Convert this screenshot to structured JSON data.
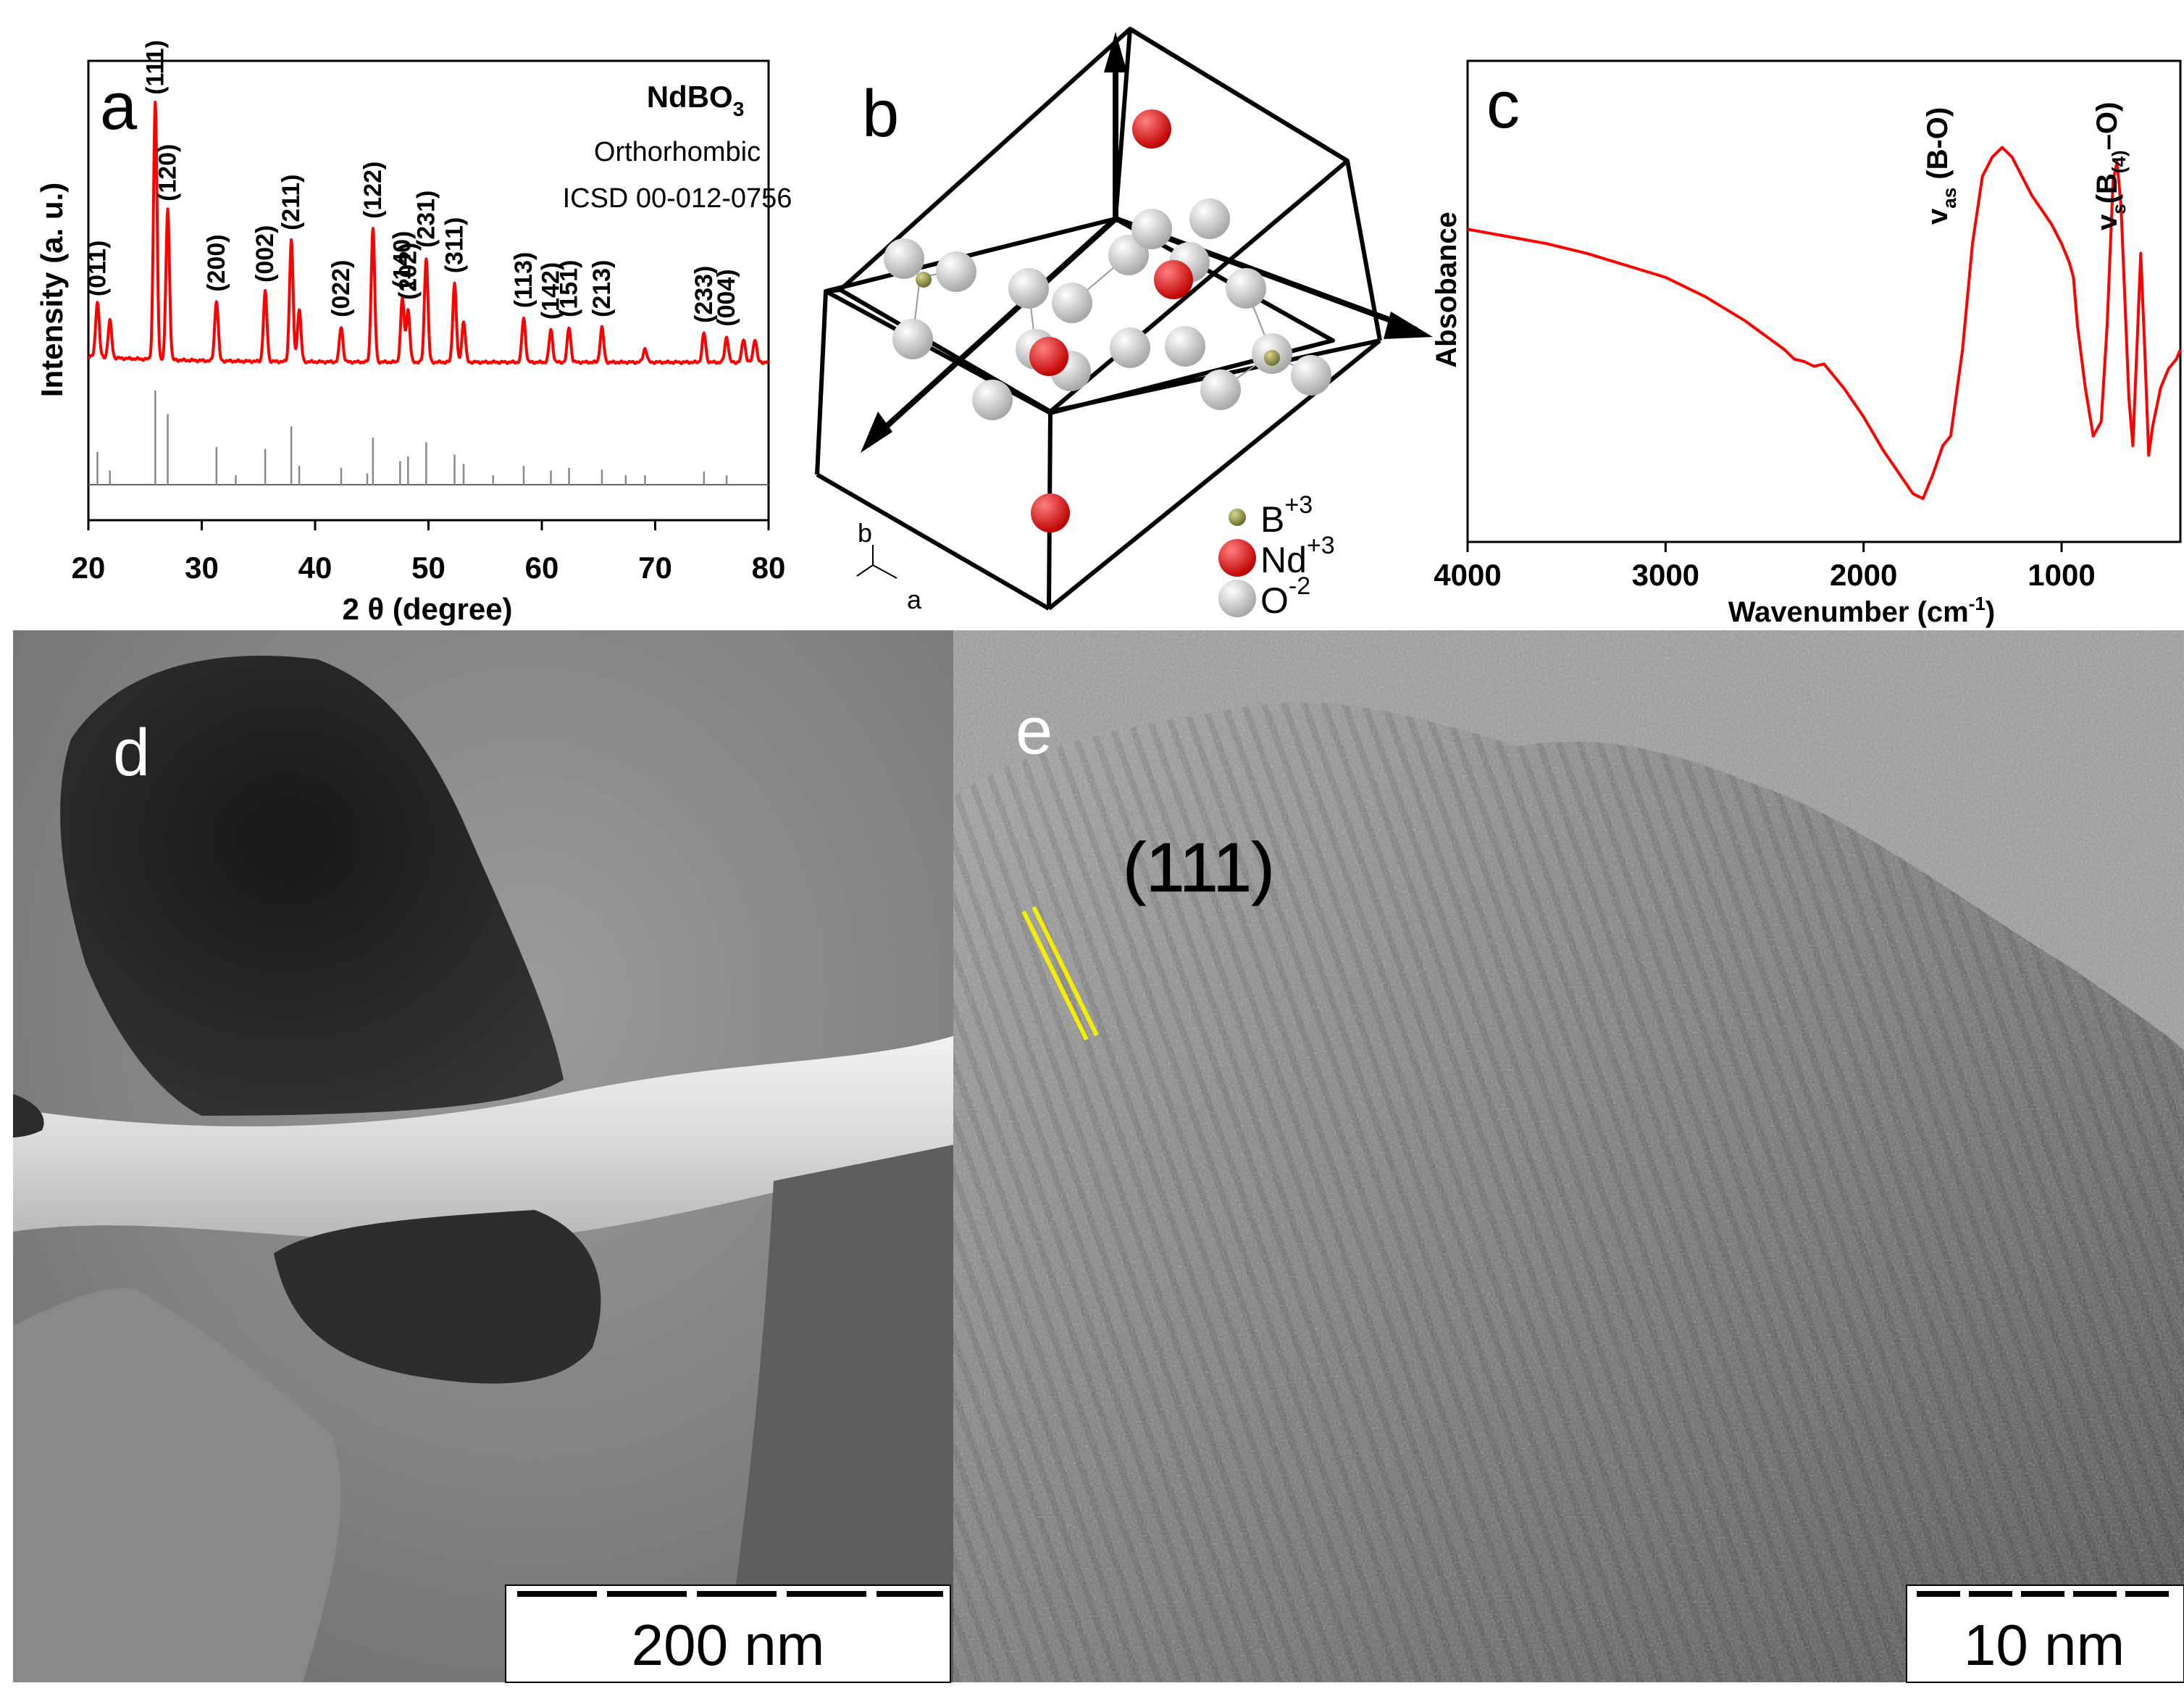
{
  "panel_a": {
    "letter": "a",
    "compound": "NdBO",
    "compound_sub": "3",
    "phase": "Orthorhombic",
    "reference": "ICSD 00-012-0756",
    "ylabel": "Intensity (a. u.)",
    "xlabel": "2 θ (degree)",
    "line_color": "#ff0000"
  },
  "panel_b": {
    "letter": "b",
    "axis_b": "b",
    "axis_a": "a",
    "legend": [
      {
        "base": "B",
        "charge": "+3",
        "color": "#9a9a52"
      },
      {
        "base": "Nd",
        "charge": "+3",
        "color": "#ee1111"
      },
      {
        "base": "O",
        "charge": "-2",
        "color": "#d8d8d8"
      }
    ]
  },
  "panel_c": {
    "letter": "c",
    "ylabel": "Absobance",
    "xlabel": "Wavenumber (cm",
    "xlabel_sup": "-1",
    "xlabel_end": ")",
    "band1": "v",
    "band1_sub": "as",
    "band1_rest": " (B-O)",
    "band2": "v",
    "band2_sub": "s",
    "band2_mid": "(B",
    "band2_sub2": "(4)",
    "band2_rest": "–O)",
    "line_color": "#ff0000"
  },
  "panel_d": {
    "letter": "d",
    "scalebar": "200 nm"
  },
  "panel_e": {
    "letter": "e",
    "plane": "(111)",
    "scalebar": "10 nm",
    "fringe_color": "#f0f000"
  },
  "chart_data": [
    {
      "type": "line",
      "panel": "a",
      "title": "NdBO3",
      "xlabel": "2 θ (degree)",
      "ylabel": "Intensity (a. u.)",
      "xlim": [
        20,
        80
      ],
      "xticks": [
        20,
        30,
        40,
        50,
        60,
        70,
        80
      ],
      "peaks": [
        {
          "x": 20.8,
          "h": 0.48,
          "label": "(011)"
        },
        {
          "x": 21.9,
          "h": 0.32,
          "label": ""
        },
        {
          "x": 25.9,
          "h": 2.22,
          "label": "(111)"
        },
        {
          "x": 27.0,
          "h": 1.3,
          "label": "(120)"
        },
        {
          "x": 31.3,
          "h": 0.52,
          "label": "(200)"
        },
        {
          "x": 35.6,
          "h": 0.6,
          "label": "(002)"
        },
        {
          "x": 37.9,
          "h": 1.05,
          "label": "(211)"
        },
        {
          "x": 38.6,
          "h": 0.45,
          "label": ""
        },
        {
          "x": 42.3,
          "h": 0.3,
          "label": "(022)"
        },
        {
          "x": 45.1,
          "h": 1.15,
          "label": "(122)"
        },
        {
          "x": 47.7,
          "h": 0.55,
          "label": "(140)"
        },
        {
          "x": 48.2,
          "h": 0.45,
          "label": "(202)"
        },
        {
          "x": 49.8,
          "h": 0.9,
          "label": "(231)"
        },
        {
          "x": 52.3,
          "h": 0.68,
          "label": "(311)"
        },
        {
          "x": 53.1,
          "h": 0.35,
          "label": ""
        },
        {
          "x": 58.4,
          "h": 0.38,
          "label": "(113)"
        },
        {
          "x": 60.8,
          "h": 0.28,
          "label": "(142)"
        },
        {
          "x": 62.4,
          "h": 0.3,
          "label": "(151)"
        },
        {
          "x": 65.3,
          "h": 0.3,
          "label": "(213)"
        },
        {
          "x": 69.1,
          "h": 0.12,
          "label": ""
        },
        {
          "x": 74.3,
          "h": 0.25,
          "label": "(233)"
        },
        {
          "x": 76.3,
          "h": 0.22,
          "label": "(004)"
        },
        {
          "x": 77.8,
          "h": 0.2,
          "label": ""
        },
        {
          "x": 78.8,
          "h": 0.2,
          "label": ""
        }
      ],
      "reference_sticks": [
        {
          "x": 20.8,
          "h": 0.35
        },
        {
          "x": 21.9,
          "h": 0.15
        },
        {
          "x": 25.9,
          "h": 1.0
        },
        {
          "x": 27.0,
          "h": 0.75
        },
        {
          "x": 31.3,
          "h": 0.4
        },
        {
          "x": 33.0,
          "h": 0.1
        },
        {
          "x": 35.6,
          "h": 0.38
        },
        {
          "x": 37.9,
          "h": 0.62
        },
        {
          "x": 38.6,
          "h": 0.2
        },
        {
          "x": 42.3,
          "h": 0.18
        },
        {
          "x": 44.6,
          "h": 0.12
        },
        {
          "x": 45.1,
          "h": 0.5
        },
        {
          "x": 47.5,
          "h": 0.25
        },
        {
          "x": 48.2,
          "h": 0.3
        },
        {
          "x": 49.8,
          "h": 0.45
        },
        {
          "x": 52.3,
          "h": 0.32
        },
        {
          "x": 53.1,
          "h": 0.22
        },
        {
          "x": 55.7,
          "h": 0.1
        },
        {
          "x": 58.4,
          "h": 0.2
        },
        {
          "x": 60.8,
          "h": 0.15
        },
        {
          "x": 62.4,
          "h": 0.18
        },
        {
          "x": 65.3,
          "h": 0.16
        },
        {
          "x": 67.4,
          "h": 0.1
        },
        {
          "x": 69.1,
          "h": 0.1
        },
        {
          "x": 74.3,
          "h": 0.14
        },
        {
          "x": 76.3,
          "h": 0.1
        }
      ]
    },
    {
      "type": "line",
      "panel": "c",
      "xlabel": "Wavenumber (cm-1)",
      "ylabel": "Absobance",
      "xlim": [
        4000,
        400
      ],
      "xticks": [
        4000,
        3000,
        2000,
        1000
      ],
      "ylim": [
        0,
        100
      ],
      "x": [
        4000,
        3800,
        3600,
        3400,
        3200,
        3000,
        2800,
        2600,
        2500,
        2400,
        2350,
        2300,
        2250,
        2200,
        2100,
        2000,
        1900,
        1800,
        1750,
        1700,
        1650,
        1600,
        1560,
        1500,
        1450,
        1400,
        1350,
        1300,
        1250,
        1200,
        1150,
        1100,
        1050,
        1000,
        960,
        940,
        920,
        880,
        840,
        800,
        770,
        740,
        720,
        700,
        680,
        660,
        640,
        620,
        600,
        580,
        560,
        540,
        500,
        460,
        420,
        400
      ],
      "y": [
        65,
        63.5,
        62,
        60,
        57.5,
        55,
        51,
        46,
        43,
        40,
        38,
        37.5,
        36.5,
        37,
        32,
        26,
        19,
        13,
        10,
        9,
        14,
        20,
        22,
        40,
        62,
        76,
        80,
        82,
        80,
        76,
        72,
        69,
        66,
        62,
        58,
        55,
        45,
        32,
        22,
        25,
        45,
        75,
        79,
        70,
        50,
        30,
        20,
        40,
        60,
        40,
        18,
        24,
        32,
        36,
        38,
        40
      ]
    }
  ]
}
